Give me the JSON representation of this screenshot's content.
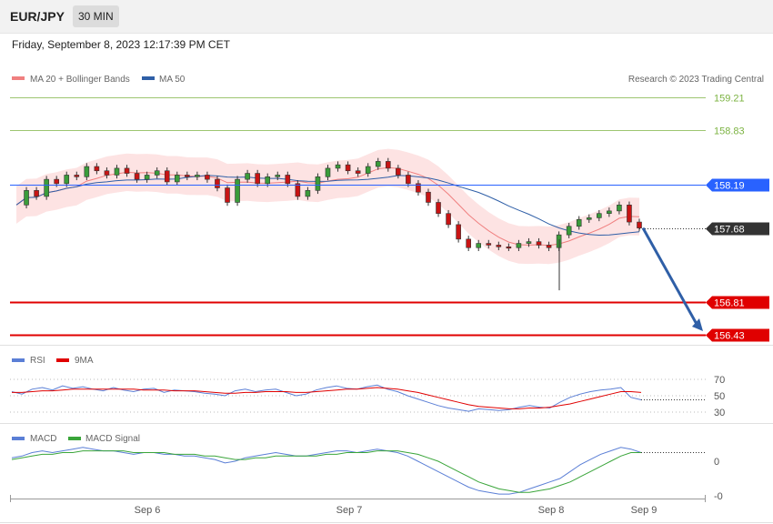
{
  "header": {
    "pair": "EUR/JPY",
    "timeframe": "30 MIN"
  },
  "timestamp": "Friday, September 8, 2023 12:17:39 PM CET",
  "legend": {
    "ma20": {
      "label": "MA 20 + Bollinger Bands",
      "color": "#f08080"
    },
    "ma50": {
      "label": "MA 50",
      "color": "#2f5fa7"
    },
    "credit": "Research © 2023 Trading Central"
  },
  "levels": [
    {
      "value": 159.21,
      "label": "159.21",
      "kind": "resistance-thin",
      "color": "#7cb342"
    },
    {
      "value": 158.83,
      "label": "158.83",
      "kind": "resistance-thin",
      "color": "#7cb342"
    },
    {
      "value": 158.19,
      "label": "158.19",
      "kind": "pivot",
      "color": "#2962ff"
    },
    {
      "value": 157.68,
      "label": "157.68",
      "kind": "last-price",
      "color": "#333333"
    },
    {
      "value": 156.81,
      "label": "156.81",
      "kind": "support",
      "color": "#e00000"
    },
    {
      "value": 156.43,
      "label": "156.43",
      "kind": "support",
      "color": "#e00000"
    }
  ],
  "rsi_panel": {
    "legend": [
      {
        "label": "RSI",
        "color": "#5b7fd6"
      },
      {
        "label": "9MA",
        "color": "#e00000"
      }
    ],
    "ticks": [
      "70",
      "50",
      "30"
    ]
  },
  "macd_panel": {
    "legend": [
      {
        "label": "MACD",
        "color": "#5b7fd6"
      },
      {
        "label": "MACD Signal",
        "color": "#3aa53a"
      }
    ],
    "ticks": [
      "0",
      "-0"
    ]
  },
  "x_ticks": [
    "Sep 6",
    "Sep 7",
    "Sep 8",
    "Sep 9"
  ],
  "chart_data": {
    "type": "candlestick",
    "instrument": "EUR/JPY",
    "interval": "30 MIN",
    "ylim": [
      156.43,
      159.21
    ],
    "forecast_arrow": {
      "from": 157.68,
      "to": 156.43
    },
    "close_path": [
      157.95,
      158.12,
      158.05,
      158.25,
      158.2,
      158.3,
      158.28,
      158.4,
      158.35,
      158.3,
      158.38,
      158.32,
      158.25,
      158.3,
      158.35,
      158.22,
      158.3,
      158.28,
      158.3,
      158.25,
      158.15,
      157.98,
      158.25,
      158.32,
      158.2,
      158.28,
      158.3,
      158.2,
      158.05,
      158.12,
      158.28,
      158.38,
      158.42,
      158.35,
      158.32,
      158.4,
      158.46,
      158.38,
      158.3,
      158.2,
      158.1,
      157.98,
      157.85,
      157.72,
      157.55,
      157.45,
      157.5,
      157.48,
      157.46,
      157.45,
      157.5,
      157.52,
      157.48,
      157.45,
      157.6,
      157.7,
      157.78,
      157.8,
      157.85,
      157.88,
      157.95,
      157.75,
      157.68
    ],
    "rsi": [
      55,
      52,
      58,
      60,
      57,
      62,
      59,
      61,
      58,
      56,
      60,
      57,
      55,
      58,
      59,
      54,
      57,
      56,
      55,
      53,
      52,
      50,
      56,
      58,
      55,
      57,
      58,
      54,
      50,
      52,
      57,
      60,
      62,
      59,
      58,
      61,
      63,
      58,
      55,
      50,
      46,
      42,
      38,
      35,
      33,
      31,
      34,
      33,
      32,
      33,
      36,
      38,
      36,
      35,
      42,
      48,
      52,
      55,
      57,
      58,
      60,
      48,
      45
    ],
    "rsi_ma": [
      54,
      54,
      55,
      56,
      56,
      57,
      58,
      58,
      58,
      58,
      58,
      58,
      58,
      57,
      57,
      57,
      56,
      56,
      56,
      55,
      54,
      53,
      53,
      54,
      54,
      55,
      55,
      55,
      54,
      54,
      55,
      56,
      57,
      58,
      58,
      59,
      60,
      59,
      58,
      56,
      54,
      51,
      48,
      45,
      42,
      39,
      37,
      36,
      35,
      34,
      34,
      35,
      35,
      36,
      38,
      40,
      43,
      46,
      49,
      52,
      55,
      55,
      54
    ],
    "macd": [
      0.02,
      0.03,
      0.05,
      0.06,
      0.05,
      0.06,
      0.07,
      0.08,
      0.07,
      0.06,
      0.06,
      0.05,
      0.04,
      0.05,
      0.05,
      0.04,
      0.04,
      0.03,
      0.03,
      0.02,
      0.01,
      -0.01,
      0.0,
      0.02,
      0.03,
      0.04,
      0.05,
      0.04,
      0.03,
      0.03,
      0.04,
      0.05,
      0.06,
      0.06,
      0.05,
      0.06,
      0.07,
      0.06,
      0.05,
      0.03,
      0.0,
      -0.03,
      -0.06,
      -0.09,
      -0.12,
      -0.15,
      -0.17,
      -0.18,
      -0.19,
      -0.19,
      -0.18,
      -0.16,
      -0.14,
      -0.12,
      -0.1,
      -0.06,
      -0.02,
      0.01,
      0.04,
      0.06,
      0.08,
      0.07,
      0.05
    ],
    "macd_signal": [
      0.01,
      0.02,
      0.03,
      0.04,
      0.04,
      0.05,
      0.05,
      0.06,
      0.06,
      0.06,
      0.06,
      0.06,
      0.05,
      0.05,
      0.05,
      0.05,
      0.04,
      0.04,
      0.04,
      0.03,
      0.03,
      0.02,
      0.01,
      0.01,
      0.02,
      0.02,
      0.03,
      0.03,
      0.03,
      0.03,
      0.03,
      0.04,
      0.04,
      0.05,
      0.05,
      0.05,
      0.06,
      0.06,
      0.06,
      0.05,
      0.04,
      0.02,
      0.0,
      -0.03,
      -0.06,
      -0.09,
      -0.12,
      -0.14,
      -0.16,
      -0.17,
      -0.18,
      -0.18,
      -0.17,
      -0.16,
      -0.14,
      -0.12,
      -0.09,
      -0.06,
      -0.03,
      0.0,
      0.03,
      0.05,
      0.05
    ]
  }
}
